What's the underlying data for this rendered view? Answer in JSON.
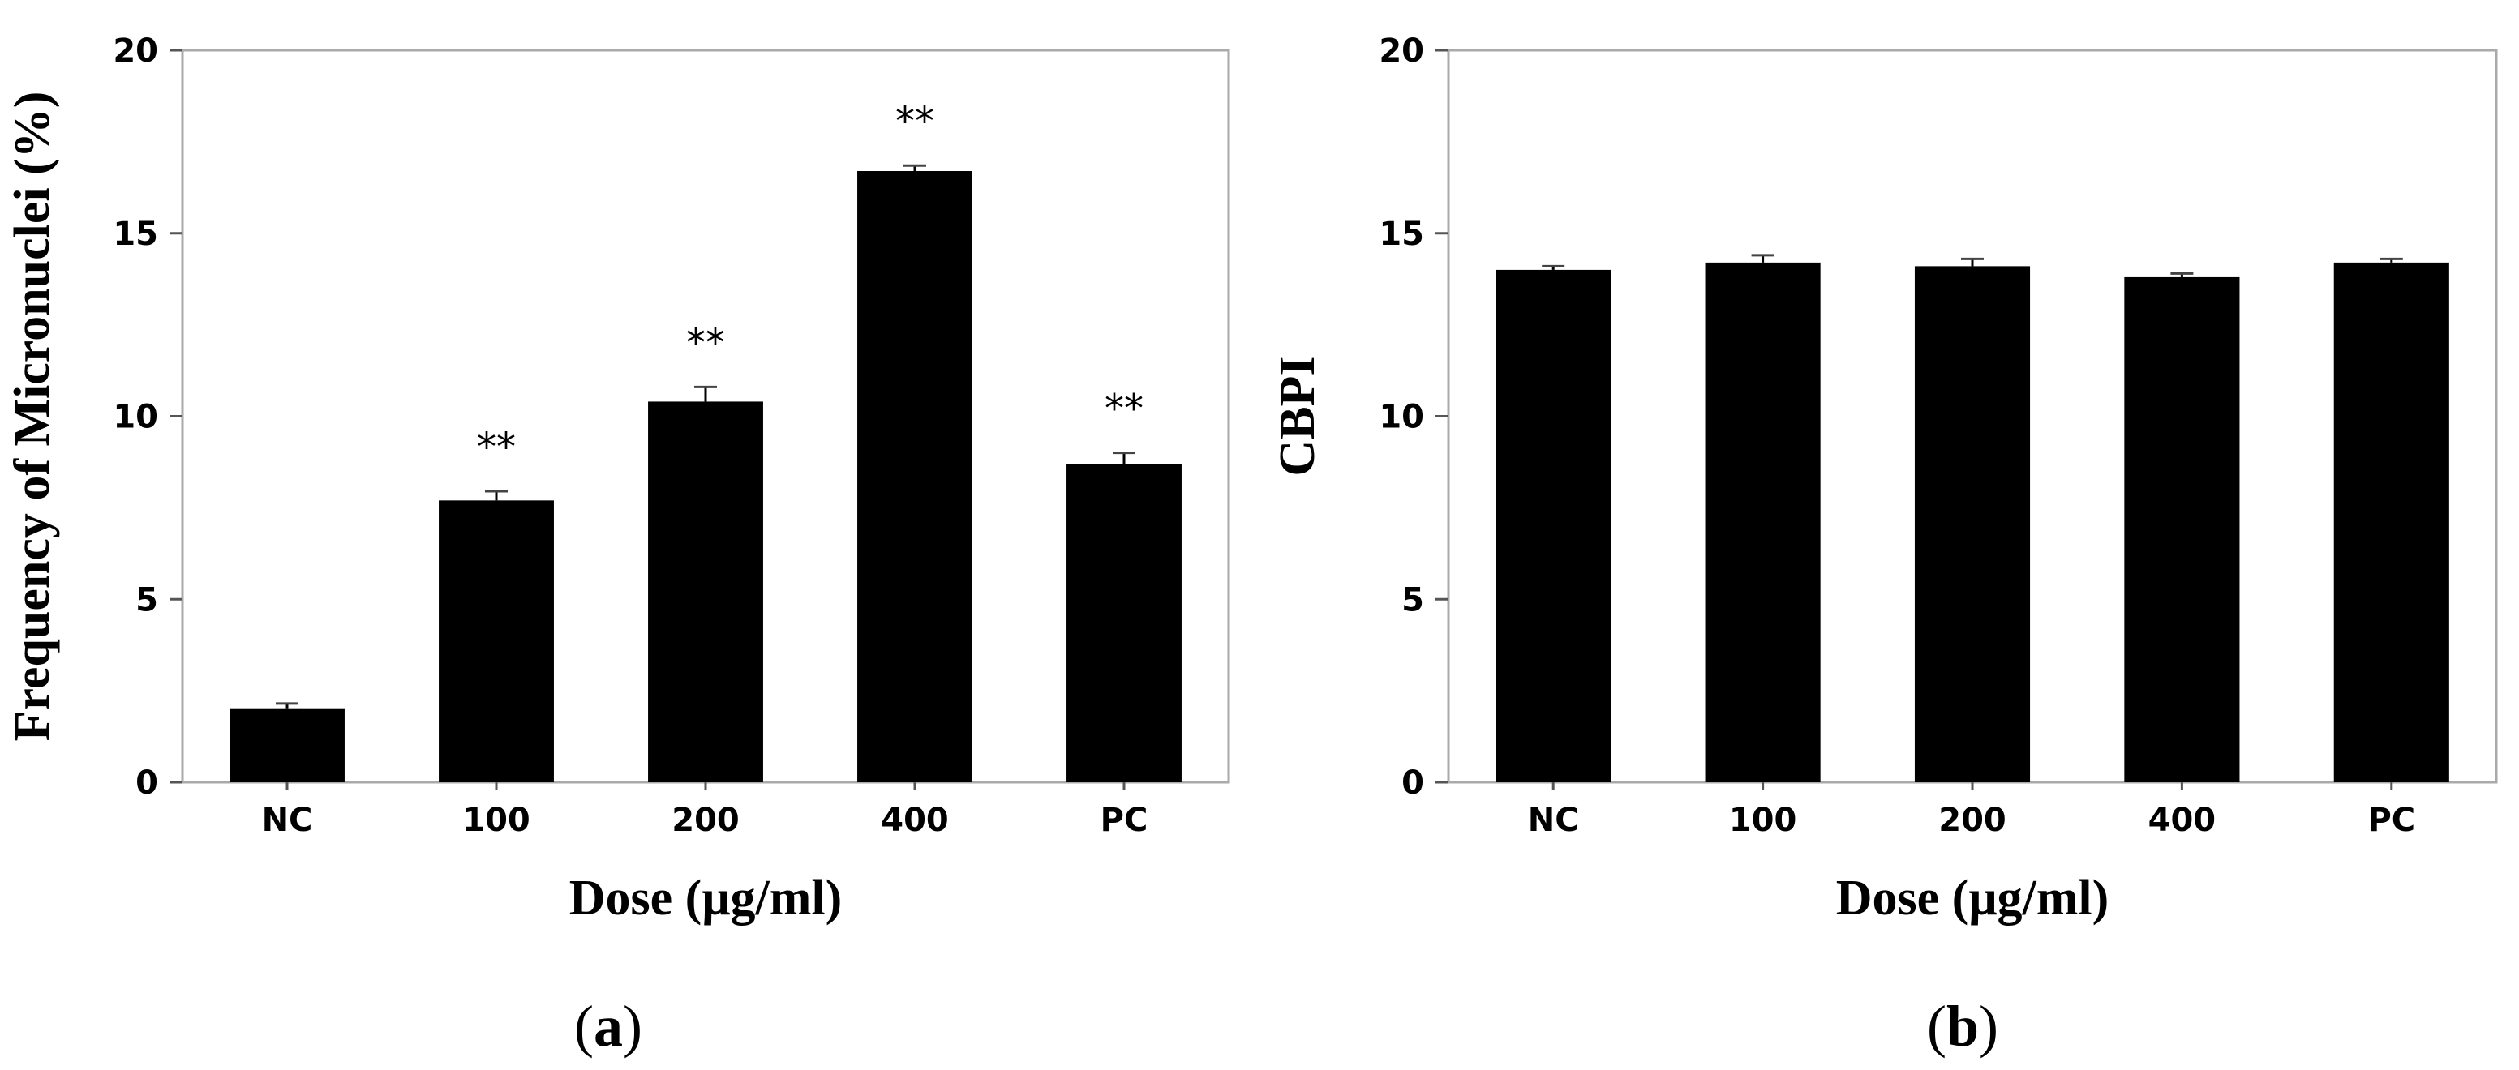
{
  "chart_data": [
    {
      "type": "bar",
      "panel_label": "a",
      "categories": [
        "NC",
        "100",
        "200",
        "400",
        "PC"
      ],
      "values": [
        2.0,
        7.7,
        10.4,
        16.7,
        8.7
      ],
      "errors": [
        0.15,
        0.25,
        0.4,
        0.15,
        0.3
      ],
      "annotations": [
        "",
        "**",
        "**",
        "**",
        "**"
      ],
      "title": "",
      "xlabel": "Dose (μg/ml)",
      "ylabel": "Frequency of Micronuclei (%)",
      "ylim": [
        0,
        20
      ],
      "yticks": [
        "0",
        "5",
        "10",
        "15",
        "20"
      ],
      "grid": false,
      "bar_color": "#000000",
      "frame_color": "#aaaaaa"
    },
    {
      "type": "bar",
      "panel_label": "b",
      "categories": [
        "NC",
        "100",
        "200",
        "400",
        "PC"
      ],
      "values": [
        14.0,
        14.2,
        14.1,
        13.8,
        14.2
      ],
      "errors": [
        0.1,
        0.2,
        0.2,
        0.1,
        0.1
      ],
      "annotations": [
        "",
        "",
        "",
        "",
        ""
      ],
      "title": "",
      "xlabel": "Dose (μg/ml)",
      "ylabel": "CBPI",
      "ylim": [
        0,
        20
      ],
      "yticks": [
        "0",
        "5",
        "10",
        "15",
        "20"
      ],
      "grid": false,
      "bar_color": "#000000",
      "frame_color": "#aaaaaa"
    }
  ]
}
